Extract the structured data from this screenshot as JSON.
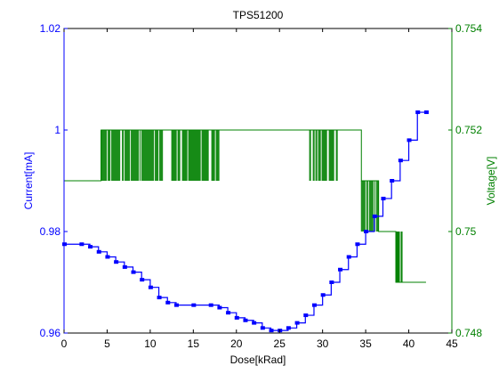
{
  "chart_data": {
    "type": "line",
    "title": "TPS51200",
    "xlabel": "Dose[kRad]",
    "ylabel_left": "Current[mA]",
    "ylabel_right": "Voltage[V]",
    "xlim": [
      0,
      45
    ],
    "ylim_left": [
      0.96,
      1.02
    ],
    "ylim_right": [
      0.748,
      0.754
    ],
    "x_ticks": [
      "0",
      "5",
      "10",
      "15",
      "20",
      "25",
      "30",
      "35",
      "40",
      "45"
    ],
    "x_tick_values": [
      0,
      5,
      10,
      15,
      20,
      25,
      30,
      35,
      40,
      45
    ],
    "y_left_ticks": [
      "0.96",
      "0.98",
      "1",
      "1.02"
    ],
    "y_left_tick_values": [
      0.96,
      0.98,
      1.0,
      1.02
    ],
    "y_right_ticks": [
      "0.748",
      "0.75",
      "0.752",
      "0.754"
    ],
    "y_right_tick_values": [
      0.748,
      0.75,
      0.752,
      0.754
    ],
    "grid": false,
    "colors": {
      "current": "#0000ff",
      "voltage": "#008000",
      "axis": "#000000"
    },
    "series": [
      {
        "axis": "left",
        "color": "#0000ff",
        "x": [
          0,
          2,
          3,
          4,
          5,
          6,
          7,
          8,
          9,
          10,
          11,
          12,
          13,
          15,
          17,
          18,
          19,
          20,
          21,
          22,
          23,
          24,
          25,
          26,
          27,
          28,
          29,
          30,
          31,
          32,
          33,
          34,
          35,
          36,
          37,
          38,
          39,
          40,
          41,
          42
        ],
        "values": [
          0.9775,
          0.9775,
          0.977,
          0.976,
          0.975,
          0.974,
          0.973,
          0.972,
          0.9705,
          0.969,
          0.967,
          0.966,
          0.9655,
          0.9655,
          0.9655,
          0.965,
          0.964,
          0.963,
          0.9625,
          0.962,
          0.961,
          0.9605,
          0.9605,
          0.961,
          0.962,
          0.9635,
          0.9655,
          0.9675,
          0.97,
          0.9725,
          0.975,
          0.9775,
          0.98,
          0.983,
          0.9865,
          0.99,
          0.994,
          0.998,
          1.0035,
          1.0035
        ]
      },
      {
        "axis": "right",
        "color": "#008000",
        "x": [
          0,
          4.3,
          34.5,
          36.5,
          38.5,
          42
        ],
        "values": [
          0.751,
          0.752,
          0.751,
          0.75,
          0.749,
          0.749
        ]
      }
    ],
    "voltage_noise_bands": [
      {
        "x_start": 4.3,
        "x_end": 11.5,
        "low": 0.751,
        "high": 0.752
      },
      {
        "x_start": 12.5,
        "x_end": 18,
        "low": 0.751,
        "high": 0.752
      },
      {
        "x_start": 28.5,
        "x_end": 31.8,
        "low": 0.751,
        "high": 0.752
      },
      {
        "x_start": 34.5,
        "x_end": 36.5,
        "low": 0.75,
        "high": 0.751
      },
      {
        "x_start": 38.5,
        "x_end": 39.3,
        "low": 0.749,
        "high": 0.75
      }
    ]
  }
}
